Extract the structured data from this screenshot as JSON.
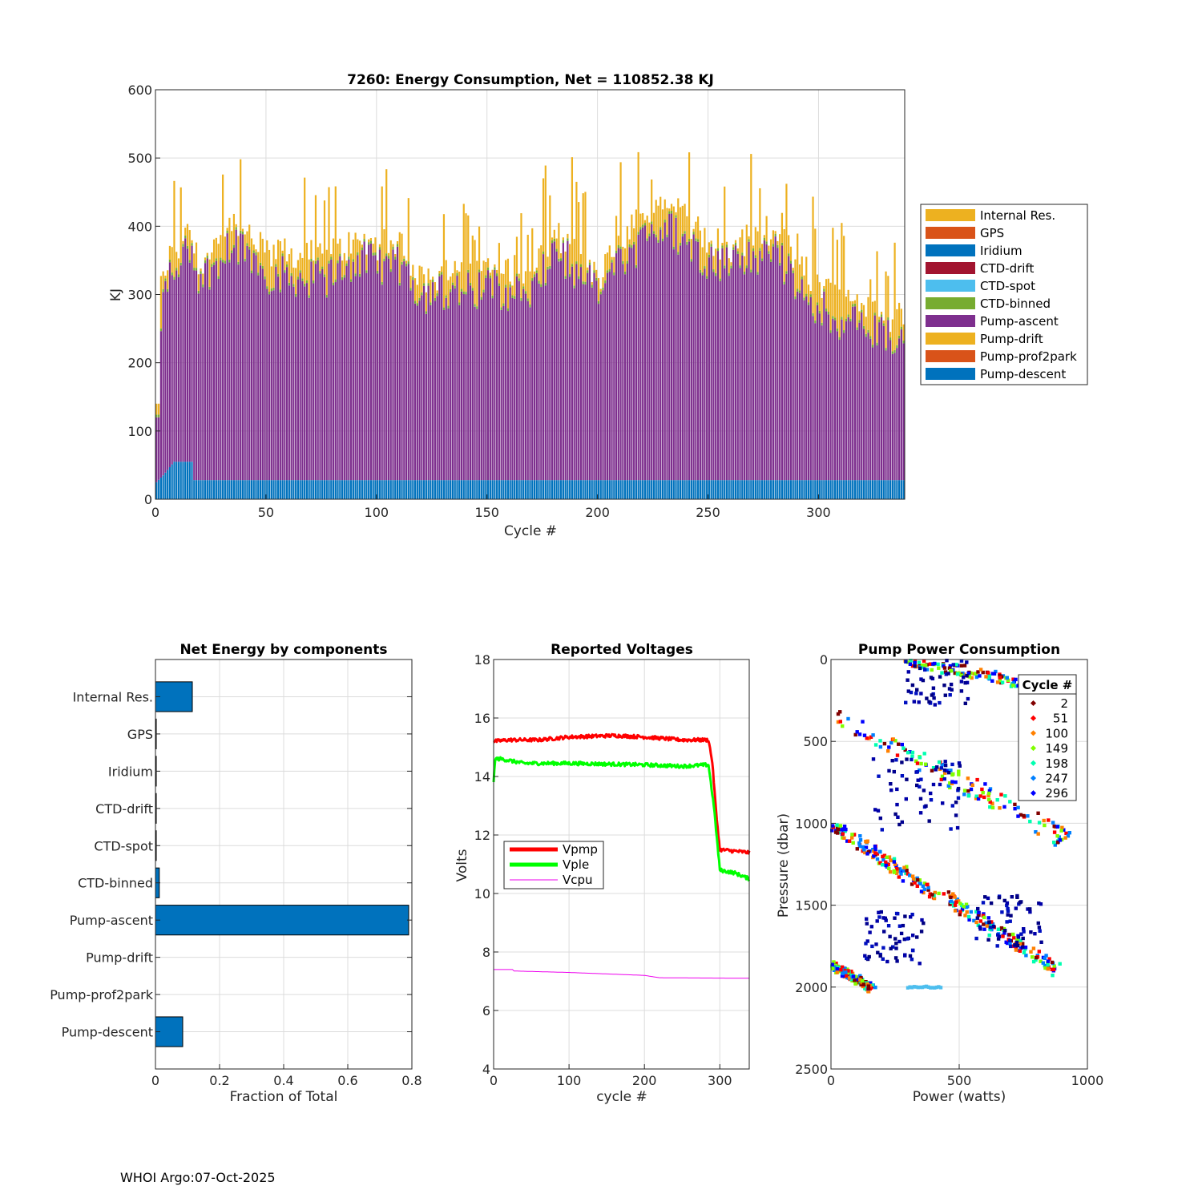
{
  "footer": "WHOI Argo:07-Oct-2025",
  "colors": {
    "Internal Res.": "#EDB120",
    "GPS": "#D95319",
    "Iridium": "#0072BD",
    "CTD-drift": "#A2142F",
    "CTD-spot": "#4DBEEE",
    "CTD-binned": "#77AC30",
    "Pump-ascent": "#7E2F8E",
    "Pump-drift": "#EDB120",
    "Pump-prof2park": "#D95319",
    "Pump-descent": "#0072BD"
  },
  "chart_data": [
    {
      "id": "energy",
      "type": "bar",
      "stacked": true,
      "title": "7260: Energy Consumption,  Net = 110852.38 KJ",
      "xlabel": "Cycle #",
      "ylabel": "KJ",
      "xlim": [
        0,
        339
      ],
      "ylim": [
        0,
        600
      ],
      "xticks": [
        0,
        50,
        100,
        150,
        200,
        250,
        300
      ],
      "yticks": [
        0,
        100,
        200,
        300,
        400,
        500,
        600
      ],
      "legend_position": "outside-right",
      "legend": [
        "Internal Res.",
        "GPS",
        "Iridium",
        "CTD-drift",
        "CTD-spot",
        "CTD-binned",
        "Pump-ascent",
        "Pump-drift",
        "Pump-prof2park",
        "Pump-descent"
      ],
      "series_approx": {
        "Pump-descent_profile": [
          [
            0,
            25
          ],
          [
            3,
            35
          ],
          [
            8,
            55
          ],
          [
            16,
            55
          ],
          [
            17,
            28
          ],
          [
            340,
            28
          ]
        ],
        "total_profile": [
          [
            0,
            280
          ],
          [
            5,
            350
          ],
          [
            15,
            390
          ],
          [
            20,
            330
          ],
          [
            35,
            400
          ],
          [
            50,
            360
          ],
          [
            75,
            355
          ],
          [
            90,
            375
          ],
          [
            110,
            370
          ],
          [
            120,
            320
          ],
          [
            150,
            340
          ],
          [
            170,
            330
          ],
          [
            180,
            390
          ],
          [
            200,
            320
          ],
          [
            210,
            380
          ],
          [
            230,
            440
          ],
          [
            250,
            380
          ],
          [
            260,
            370
          ],
          [
            280,
            400
          ],
          [
            290,
            340
          ],
          [
            310,
            300
          ],
          [
            325,
            270
          ],
          [
            338,
            270
          ]
        ],
        "ascent_profile": [
          [
            0,
            230
          ],
          [
            5,
            320
          ],
          [
            15,
            370
          ],
          [
            20,
            320
          ],
          [
            35,
            380
          ],
          [
            50,
            330
          ],
          [
            75,
            320
          ],
          [
            90,
            350
          ],
          [
            110,
            340
          ],
          [
            120,
            300
          ],
          [
            150,
            310
          ],
          [
            170,
            300
          ],
          [
            180,
            370
          ],
          [
            200,
            300
          ],
          [
            210,
            350
          ],
          [
            230,
            400
          ],
          [
            250,
            350
          ],
          [
            260,
            340
          ],
          [
            280,
            370
          ],
          [
            290,
            300
          ],
          [
            310,
            260
          ],
          [
            325,
            250
          ],
          [
            338,
            230
          ]
        ]
      }
    },
    {
      "id": "components",
      "type": "bar",
      "orientation": "horizontal",
      "title": "Net Energy by components",
      "xlabel": "Fraction of Total",
      "categories": [
        "Internal Res.",
        "GPS",
        "Iridium",
        "CTD-drift",
        "CTD-spot",
        "CTD-binned",
        "Pump-ascent",
        "Pump-drift",
        "Pump-prof2park",
        "Pump-descent"
      ],
      "values": [
        0.115,
        0.002,
        0.002,
        0.002,
        0.001,
        0.012,
        0.79,
        0.0,
        0.0,
        0.085
      ],
      "xlim": [
        0,
        0.8
      ],
      "xticks": [
        0,
        0.2,
        0.4,
        0.6,
        0.8
      ]
    },
    {
      "id": "voltages",
      "type": "line",
      "title": "Reported Voltages",
      "xlabel": "cycle #",
      "ylabel": "Volts",
      "xlim": [
        0,
        339
      ],
      "ylim": [
        4,
        18
      ],
      "xticks": [
        0,
        100,
        200,
        300
      ],
      "yticks": [
        4,
        6,
        8,
        10,
        12,
        14,
        16,
        18
      ],
      "legend_position": "middle-left",
      "series": [
        {
          "name": "Vpmp",
          "color": "#ff0000",
          "width": 5,
          "points": [
            [
              0,
              15.2
            ],
            [
              20,
              15.25
            ],
            [
              60,
              15.25
            ],
            [
              100,
              15.35
            ],
            [
              160,
              15.4
            ],
            [
              200,
              15.35
            ],
            [
              250,
              15.25
            ],
            [
              285,
              15.25
            ],
            [
              290,
              14.5
            ],
            [
              295,
              12.8
            ],
            [
              300,
              11.5
            ],
            [
              339,
              11.4
            ]
          ]
        },
        {
          "name": "Vple",
          "color": "#00ff00",
          "width": 5,
          "points": [
            [
              0,
              13.8
            ],
            [
              2,
              14.6
            ],
            [
              10,
              14.6
            ],
            [
              40,
              14.45
            ],
            [
              100,
              14.45
            ],
            [
              200,
              14.4
            ],
            [
              250,
              14.35
            ],
            [
              285,
              14.4
            ],
            [
              292,
              13.0
            ],
            [
              300,
              10.8
            ],
            [
              320,
              10.7
            ],
            [
              339,
              10.5
            ]
          ]
        },
        {
          "name": "Vcpu",
          "color": "#ee00ee",
          "width": 1,
          "points": [
            [
              0,
              7.4
            ],
            [
              25,
              7.4
            ],
            [
              27,
              7.35
            ],
            [
              100,
              7.3
            ],
            [
              200,
              7.2
            ],
            [
              220,
              7.12
            ],
            [
              339,
              7.1
            ]
          ]
        }
      ]
    },
    {
      "id": "pump",
      "type": "scatter",
      "title": "Pump Power Consumption",
      "xlabel": "Power (watts)",
      "ylabel": "Pressure (dbar)",
      "xlim": [
        0,
        1000
      ],
      "ylim": [
        0,
        2500
      ],
      "y_reversed": true,
      "xticks": [
        0,
        500,
        1000
      ],
      "yticks": [
        0,
        500,
        1000,
        1500,
        2000,
        2500
      ],
      "legend_title": "Cycle #",
      "legend_position": "top-right",
      "legend": [
        "2",
        "51",
        "100",
        "149",
        "198",
        "247",
        "296"
      ],
      "series_colors": [
        "#800000",
        "#ff0000",
        "#ff8000",
        "#80ff00",
        "#00ffb0",
        "#0080ff",
        "#0000ff"
      ],
      "clusters": [
        {
          "p0": 0,
          "p1": 180,
          "w0": 280,
          "w1": 880,
          "spread": 35
        },
        {
          "p0": 320,
          "p1": 1100,
          "w0": 0,
          "w1": 920,
          "spread": 60
        },
        {
          "p0": 1000,
          "p1": 1450,
          "w0": 0,
          "w1": 420,
          "spread": 40
        },
        {
          "p0": 1450,
          "p1": 1900,
          "w0": 450,
          "w1": 880,
          "spread": 45
        },
        {
          "p0": 1860,
          "p1": 2010,
          "w0": 0,
          "w1": 160,
          "spread": 25
        }
      ],
      "sparse_clusters": [
        {
          "pc": 120,
          "wc": 420,
          "dp": 160,
          "dw": 130
        },
        {
          "pc": 820,
          "wc": 330,
          "dp": 220,
          "dw": 180
        },
        {
          "pc": 1700,
          "wc": 250,
          "dp": 160,
          "dw": 120
        },
        {
          "pc": 1600,
          "wc": 700,
          "dp": 160,
          "dw": 140
        }
      ],
      "dark_cluster_colors": [
        "#000080",
        "#000090",
        "#0000a8",
        "#0010c0"
      ],
      "line_cluster": {
        "p": 2000,
        "w0": 300,
        "w1": 430
      }
    }
  ]
}
